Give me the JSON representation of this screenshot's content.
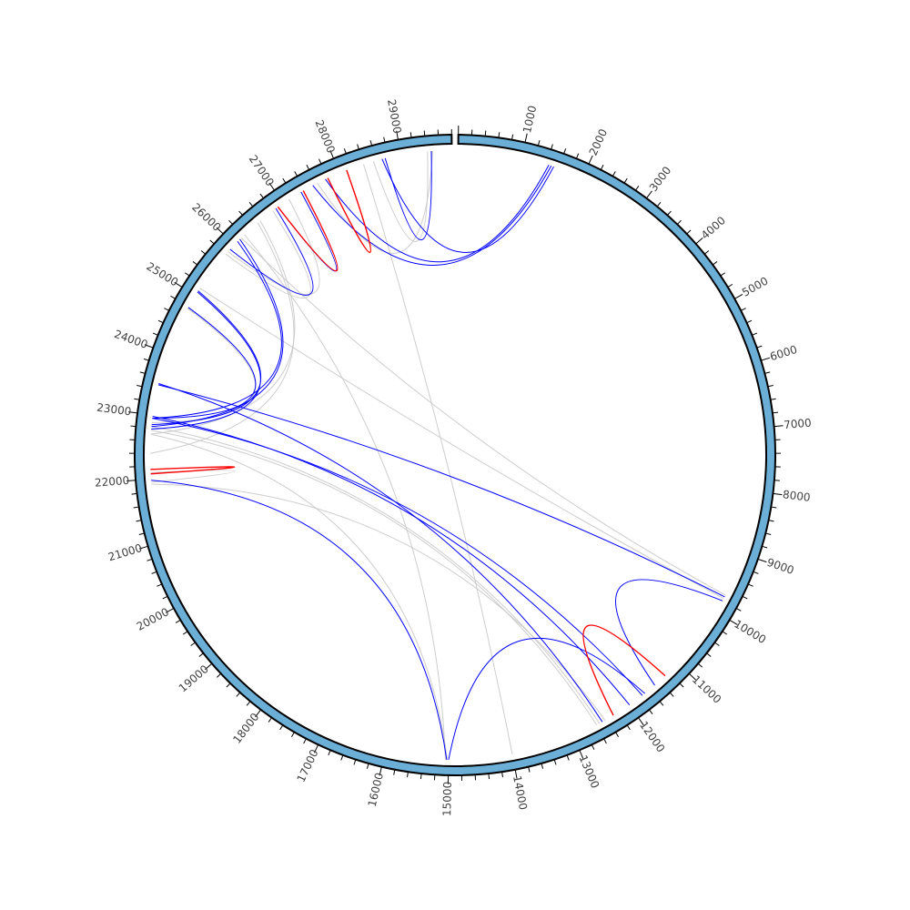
{
  "chart_data": {
    "type": "circos",
    "genome_length": 29800,
    "position_labels": [
      "1000",
      "2000",
      "3000",
      "4000",
      "5000",
      "6000",
      "7000",
      "8000",
      "9000",
      "10000",
      "11000",
      "12000",
      "13000",
      "14000",
      "15000",
      "16000",
      "17000",
      "18000",
      "19000",
      "20000",
      "21000",
      "22000",
      "23000",
      "24000",
      "25000",
      "26000",
      "27000",
      "28000",
      "29000"
    ],
    "label_step": 1000,
    "minor_tick_step": 200,
    "colors": {
      "ideogram": "#6baed6",
      "ideogram_edge": "#000000",
      "blue": "#0000ff",
      "red": "#ff0000",
      "gray": "#c8c8c8"
    },
    "links": [
      {
        "from": 1480,
        "to": 27540,
        "color": "blue"
      },
      {
        "from": 1440,
        "to": 27760,
        "color": "blue"
      },
      {
        "from": 1520,
        "to": 28700,
        "color": "blue"
      },
      {
        "from": 29480,
        "to": 28750,
        "color": "blue"
      },
      {
        "from": 29500,
        "to": 27620,
        "color": "gray"
      },
      {
        "from": 29420,
        "to": 28560,
        "color": "gray"
      },
      {
        "from": 28120,
        "to": 27800,
        "color": "red"
      },
      {
        "from": 27370,
        "to": 26900,
        "color": "red"
      },
      {
        "from": 27330,
        "to": 26900,
        "color": "blue"
      },
      {
        "from": 26860,
        "to": 25900,
        "color": "blue"
      },
      {
        "from": 26800,
        "to": 25800,
        "color": "gray"
      },
      {
        "from": 27110,
        "to": 25850,
        "color": "gray"
      },
      {
        "from": 26550,
        "to": 22700,
        "color": "gray"
      },
      {
        "from": 26500,
        "to": 22400,
        "color": "gray"
      },
      {
        "from": 26120,
        "to": 22820,
        "color": "blue"
      },
      {
        "from": 26070,
        "to": 22950,
        "color": "blue"
      },
      {
        "from": 25060,
        "to": 22780,
        "color": "blue"
      },
      {
        "from": 25080,
        "to": 22850,
        "color": "blue"
      },
      {
        "from": 25130,
        "to": 9760,
        "color": "gray"
      },
      {
        "from": 24780,
        "to": 22950,
        "color": "blue"
      },
      {
        "from": 24760,
        "to": 22880,
        "color": "gray"
      },
      {
        "from": 23500,
        "to": 12500,
        "color": "blue"
      },
      {
        "from": 23480,
        "to": 9730,
        "color": "blue"
      },
      {
        "from": 22980,
        "to": 12000,
        "color": "blue"
      },
      {
        "from": 22950,
        "to": 11750,
        "color": "blue"
      },
      {
        "from": 22820,
        "to": 12550,
        "color": "gray"
      },
      {
        "from": 22760,
        "to": 12600,
        "color": "gray"
      },
      {
        "from": 22700,
        "to": 15020,
        "color": "gray"
      },
      {
        "from": 22150,
        "to": 22080,
        "color": "red"
      },
      {
        "from": 22100,
        "to": 21950,
        "color": "gray"
      },
      {
        "from": 21980,
        "to": 15030,
        "color": "blue"
      },
      {
        "from": 21920,
        "to": 12450,
        "color": "gray"
      },
      {
        "from": 26220,
        "to": 15050,
        "color": "gray"
      },
      {
        "from": 26150,
        "to": 9700,
        "color": "gray"
      },
      {
        "from": 28400,
        "to": 14000,
        "color": "gray"
      },
      {
        "from": 15000,
        "to": 11700,
        "color": "blue"
      },
      {
        "from": 9800,
        "to": 11500,
        "color": "blue"
      },
      {
        "from": 11280,
        "to": 12300,
        "color": "red"
      }
    ]
  }
}
